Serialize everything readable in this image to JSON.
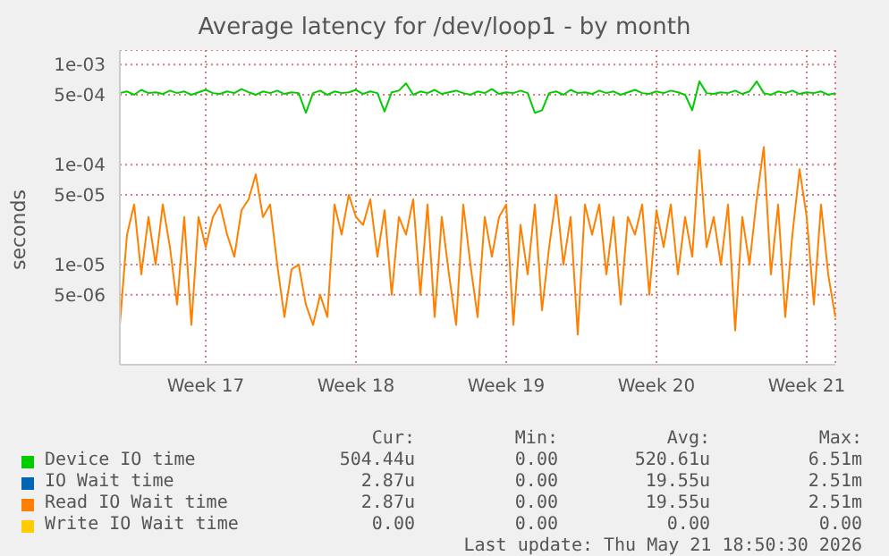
{
  "chart_data": {
    "type": "line",
    "title": "Average latency for /dev/loop1 - by month",
    "ylabel": "seconds",
    "log": "y",
    "grid": true,
    "legend": "bottom",
    "marker": "none",
    "line_style": "solid",
    "categories": [
      null,
      null,
      null,
      null,
      null,
      null,
      null,
      null,
      null,
      null,
      null,
      null,
      "Week 17",
      null,
      null,
      null,
      null,
      null,
      null,
      null,
      null,
      null,
      null,
      null,
      null,
      null,
      null,
      null,
      null,
      null,
      null,
      null,
      null,
      "Week 18",
      null,
      null,
      null,
      null,
      null,
      null,
      null,
      null,
      null,
      null,
      null,
      null,
      null,
      null,
      null,
      null,
      null,
      null,
      null,
      null,
      "Week 19",
      null,
      null,
      null,
      null,
      null,
      null,
      null,
      null,
      null,
      null,
      null,
      null,
      null,
      null,
      null,
      null,
      null,
      null,
      null,
      null,
      "Week 20",
      null,
      null,
      null,
      null,
      null,
      null,
      null,
      null,
      null,
      null,
      null,
      null,
      null,
      null,
      null,
      null,
      null,
      null,
      null,
      null,
      "Week 21",
      null,
      null,
      null,
      null
    ],
    "ylim": [
      1e-06,
      0.0014
    ],
    "yticks": [
      {
        "value": 5e-06,
        "label": "5e-06"
      },
      {
        "value": 1e-05,
        "label": "1e-05"
      },
      {
        "value": 5e-05,
        "label": "5e-05"
      },
      {
        "value": 0.0001,
        "label": "1e-04"
      },
      {
        "value": 0.0005,
        "label": "5e-04"
      },
      {
        "value": 0.001,
        "label": "1e-03"
      }
    ],
    "series": [
      {
        "name": "Device IO time",
        "color": "#00cc00",
        "values": [
          0.00052,
          0.00054,
          0.0005,
          0.00056,
          0.00052,
          0.00053,
          0.00051,
          0.00055,
          0.00052,
          0.00054,
          0.0005,
          0.00053,
          0.00056,
          0.00052,
          0.00051,
          0.00054,
          0.00052,
          0.00057,
          0.00053,
          0.0005,
          0.00054,
          0.00052,
          0.00055,
          0.00051,
          0.00053,
          0.00052,
          0.00033,
          0.00052,
          0.00055,
          0.0005,
          0.00054,
          0.00052,
          0.00053,
          0.00056,
          0.00051,
          0.00054,
          0.00052,
          0.00034,
          0.00053,
          0.00055,
          0.00065,
          0.0005,
          0.00054,
          0.00052,
          0.00056,
          0.00051,
          0.00053,
          0.00055,
          0.00052,
          0.0005,
          0.00054,
          0.00052,
          0.00057,
          0.00051,
          0.00053,
          0.00052,
          0.00055,
          0.00052,
          0.00033,
          0.00035,
          0.00052,
          0.00054,
          0.0005,
          0.00056,
          0.00052,
          0.00053,
          0.00051,
          0.00055,
          0.00052,
          0.00054,
          0.0005,
          0.00053,
          0.00056,
          0.00052,
          0.00051,
          0.00054,
          0.00052,
          0.00055,
          0.00053,
          0.0005,
          0.00035,
          0.00068,
          0.00052,
          0.00051,
          0.00053,
          0.00052,
          0.00055,
          0.00051,
          0.00054,
          0.00068,
          0.00052,
          0.0005,
          0.00054,
          0.00052,
          0.00055,
          0.00051,
          0.00053,
          0.00052,
          0.00054,
          0.0005,
          0.00052
        ]
      },
      {
        "name": "IO Wait time",
        "color": "#0066b3",
        "values": [
          null,
          null,
          null,
          null,
          null,
          null,
          null,
          null,
          null,
          null,
          null,
          null,
          null,
          null,
          null,
          null,
          null,
          null,
          null,
          null,
          null,
          null,
          null,
          null,
          null,
          null,
          null,
          null,
          null,
          null,
          null,
          null,
          null,
          null,
          null,
          null,
          null,
          null,
          null,
          null,
          null,
          null,
          null,
          null,
          null,
          null,
          null,
          null,
          null,
          null,
          null,
          null,
          null,
          null,
          null,
          null,
          null,
          null,
          null,
          null,
          null,
          null,
          null,
          null,
          null,
          null,
          null,
          null,
          null,
          null,
          null,
          null,
          null,
          null,
          null,
          null,
          null,
          null,
          null,
          null,
          null,
          null,
          null,
          null,
          null,
          null,
          null,
          null,
          null,
          null,
          null,
          null,
          null,
          null,
          null,
          null,
          null,
          null,
          null,
          null,
          null
        ]
      },
      {
        "name": "Read IO Wait time",
        "color": "#ff8000",
        "values": [
          2.5e-06,
          2e-05,
          4e-05,
          8e-06,
          3e-05,
          1e-05,
          4e-05,
          1.5e-05,
          4e-06,
          3e-05,
          2.5e-06,
          3e-05,
          1.5e-05,
          3e-05,
          4e-05,
          2e-05,
          1.2e-05,
          3.5e-05,
          4.5e-05,
          8e-05,
          3e-05,
          4e-05,
          1e-05,
          3e-06,
          9e-06,
          1e-05,
          4e-06,
          2.5e-06,
          5e-06,
          3e-06,
          4e-05,
          2e-05,
          5e-05,
          3e-05,
          2.5e-05,
          4.5e-05,
          1.2e-05,
          3.5e-05,
          5e-06,
          3e-05,
          2e-05,
          4.5e-05,
          5e-06,
          4e-05,
          3e-06,
          3e-05,
          8e-06,
          2.5e-06,
          4e-05,
          1e-05,
          3e-06,
          3e-05,
          1.2e-05,
          3e-05,
          4e-05,
          2.5e-06,
          2.5e-05,
          8e-06,
          4e-05,
          3.5e-06,
          1.5e-05,
          5e-05,
          1e-05,
          3e-05,
          2e-06,
          4e-05,
          2e-05,
          4e-05,
          8e-06,
          3e-05,
          4e-06,
          3e-05,
          2e-05,
          4e-05,
          5e-06,
          3.5e-05,
          1.5e-05,
          4e-05,
          8e-06,
          3e-05,
          1.2e-05,
          0.00014,
          1.5e-05,
          3e-05,
          1e-05,
          4e-05,
          2.2e-06,
          3e-05,
          1e-05,
          4.5e-05,
          0.00015,
          8e-06,
          4e-05,
          3e-06,
          2e-05,
          9e-05,
          3e-05,
          4e-06,
          4e-05,
          8e-06,
          3e-06
        ]
      },
      {
        "name": "Write IO Wait time",
        "color": "#ffcc00",
        "values": [
          null,
          null,
          null,
          null,
          null,
          null,
          null,
          null,
          null,
          null,
          null,
          null,
          null,
          null,
          null,
          null,
          null,
          null,
          null,
          null,
          null,
          null,
          null,
          null,
          null,
          null,
          null,
          null,
          null,
          null,
          null,
          null,
          null,
          null,
          null,
          null,
          null,
          null,
          null,
          null,
          null,
          null,
          null,
          null,
          null,
          null,
          null,
          null,
          null,
          null,
          null,
          null,
          null,
          null,
          null,
          null,
          null,
          null,
          null,
          null,
          null,
          null,
          null,
          null,
          null,
          null,
          null,
          null,
          null,
          null,
          null,
          null,
          null,
          null,
          null,
          null,
          null,
          null,
          null,
          null,
          null,
          null,
          null,
          null,
          null,
          null,
          null,
          null,
          null,
          null,
          null,
          null,
          null,
          null,
          null,
          null,
          null,
          null,
          null,
          null,
          null
        ]
      }
    ],
    "annotations": [
      "Cur:",
      "Min:",
      "Avg:",
      "Max:",
      "504.44u",
      "0.00",
      "520.61u",
      "6.51m",
      "2.87u",
      "0.00",
      "19.55u",
      "2.51m",
      "2.87u",
      "0.00",
      "19.55u",
      "2.51m",
      "0.00",
      "0.00",
      "0.00",
      "0.00",
      "Last update: Thu May 21 18:50:30 2026"
    ]
  }
}
